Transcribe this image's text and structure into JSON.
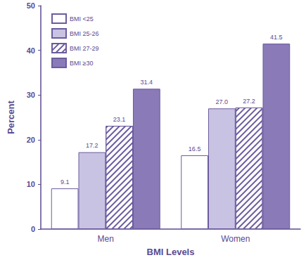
{
  "chart_data": {
    "type": "bar",
    "categories": [
      "Men",
      "Women"
    ],
    "series": [
      {
        "name": "BMI <25",
        "color": "#ffffff",
        "values": [
          9.1,
          16.5
        ]
      },
      {
        "name": "BMI 25-26",
        "color": "#c9c3e3",
        "values": [
          17.2,
          27.0
        ],
        "value_labels": [
          "17.2",
          "27.0"
        ]
      },
      {
        "name": "BMI 27-29",
        "color": "#ffffff",
        "line_style": "hatched",
        "values": [
          23.1,
          27.2
        ]
      },
      {
        "name": "BMI ≥30",
        "color": "#8a7ab8",
        "values": [
          31.4,
          41.5
        ]
      }
    ],
    "x_label": "BMI Levels",
    "y_label": "Percent",
    "ylim": [
      0,
      50
    ],
    "yticks": [
      0,
      10,
      20,
      30,
      40,
      50
    ],
    "grid": false,
    "legend": "upper left",
    "data_labels": true
  }
}
